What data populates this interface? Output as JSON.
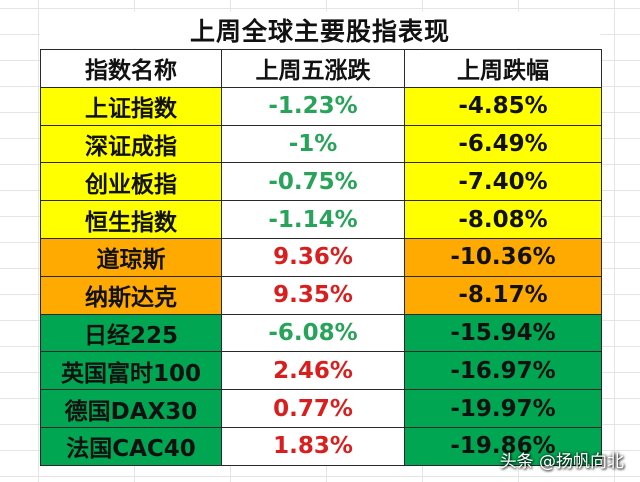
{
  "title": "上周全球主要股指表现",
  "headers": {
    "name": "指数名称",
    "friday": "上周五涨跌",
    "week": "上周跌幅"
  },
  "rows": [
    {
      "name": "上证指数",
      "friday": "-1.23%",
      "week": "-4.85%",
      "group": "yellow",
      "friday_sign": "neg"
    },
    {
      "name": "深证成指",
      "friday": "-1%",
      "week": "-6.49%",
      "group": "yellow",
      "friday_sign": "neg"
    },
    {
      "name": "创业板指",
      "friday": "-0.75%",
      "week": "-7.40%",
      "group": "yellow",
      "friday_sign": "neg"
    },
    {
      "name": "恒生指数",
      "friday": "-1.14%",
      "week": "-8.08%",
      "group": "yellow",
      "friday_sign": "neg"
    },
    {
      "name": "道琼斯",
      "friday": "9.36%",
      "week": "-10.36%",
      "group": "orange",
      "friday_sign": "pos"
    },
    {
      "name": "纳斯达克",
      "friday": "9.35%",
      "week": "-8.17%",
      "group": "orange",
      "friday_sign": "pos"
    },
    {
      "name": "日经225",
      "friday": "-6.08%",
      "week": "-15.94%",
      "group": "green",
      "friday_sign": "neg"
    },
    {
      "name": "英国富时100",
      "friday": "2.46%",
      "week": "-16.97%",
      "group": "green",
      "friday_sign": "pos"
    },
    {
      "name": "德国DAX30",
      "friday": "0.77%",
      "week": "-19.97%",
      "group": "green",
      "friday_sign": "pos"
    },
    {
      "name": "法国CAC40",
      "friday": "1.83%",
      "week": "-19.86%",
      "group": "green",
      "friday_sign": "pos"
    }
  ],
  "colors": {
    "yellow": "#ffff00",
    "orange": "#ffaa00",
    "green": "#00a651",
    "up_red": "#d91e1e",
    "down_green": "#27a35a"
  },
  "watermark": "头条 @扬帆向北"
}
